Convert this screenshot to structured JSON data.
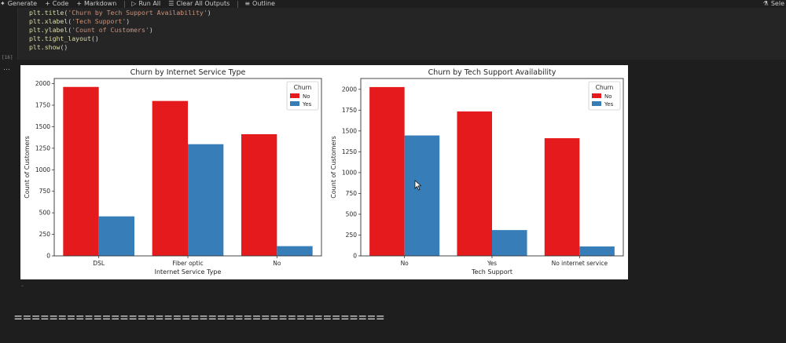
{
  "toolbar": {
    "generate_label": "Generate",
    "code_label": "Code",
    "markdown_label": "Markdown",
    "run_all_label": "Run All",
    "clear_outputs_label": "Clear All Outputs",
    "outline_label": "Outline",
    "select_label": "Sele"
  },
  "code_cell": {
    "lines": [
      {
        "fn": "plt.title",
        "arg": "'Churn by Tech Support Availability'"
      },
      {
        "fn": "plt.xlabel",
        "arg": "'Tech Support'"
      },
      {
        "fn": "plt.ylabel",
        "arg": "'Count of Customers'"
      },
      {
        "fn": "plt.tight_layout",
        "arg": ""
      },
      {
        "fn": "plt.show",
        "arg": ""
      }
    ],
    "exec_count": "[16]"
  },
  "output": {
    "dots": "…",
    "separator_text": "=========================================="
  },
  "colors": {
    "no": "#e41a1c",
    "yes": "#377eb8"
  },
  "chart_data": [
    {
      "type": "bar",
      "title": "Churn by Internet Service Type",
      "xlabel": "Internet Service Type",
      "ylabel": "Count of Customers",
      "categories": [
        "DSL",
        "Fiber optic",
        "No"
      ],
      "series": [
        {
          "name": "No",
          "values": [
            1962,
            1799,
            1413
          ]
        },
        {
          "name": "Yes",
          "values": [
            459,
            1297,
            113
          ]
        }
      ],
      "yticks": [
        0,
        250,
        500,
        750,
        1000,
        1250,
        1500,
        1750,
        2000
      ],
      "ylim": [
        0,
        2060
      ],
      "legend_title": "Churn",
      "legend_position": "top-right",
      "grid": false
    },
    {
      "type": "bar",
      "title": "Churn by Tech Support Availability",
      "xlabel": "Tech Support",
      "ylabel": "Count of Customers",
      "categories": [
        "No",
        "Yes",
        "No internet service"
      ],
      "series": [
        {
          "name": "No",
          "values": [
            2027,
            1734,
            1413
          ]
        },
        {
          "name": "Yes",
          "values": [
            1446,
            310,
            113
          ]
        }
      ],
      "yticks": [
        0,
        250,
        500,
        750,
        1000,
        1250,
        1500,
        1750,
        2000
      ],
      "ylim": [
        0,
        2130
      ],
      "legend_title": "Churn",
      "legend_position": "top-right",
      "grid": false
    }
  ]
}
